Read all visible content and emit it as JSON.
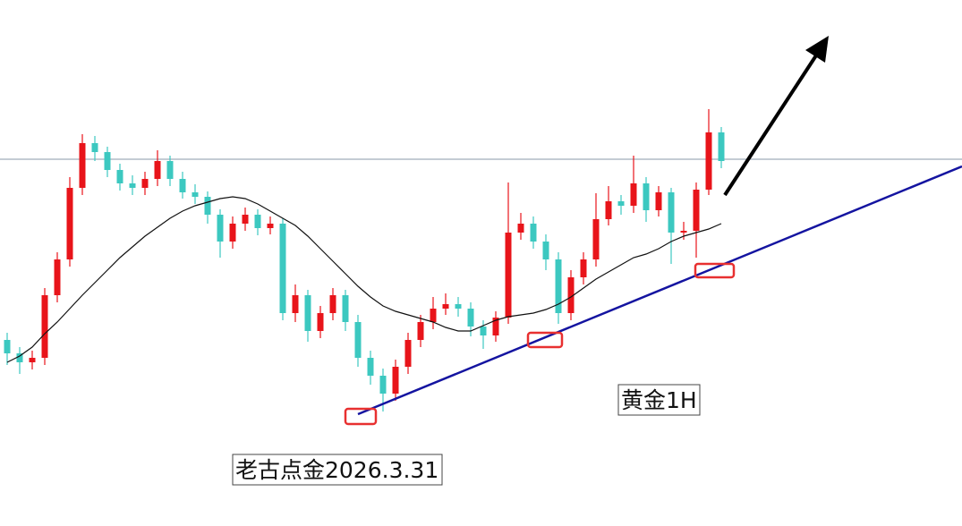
{
  "chart_data": {
    "type": "candlestick",
    "up_color": "#e8141a",
    "down_color": "#3cc8c0",
    "ma_color": "#111111",
    "ylim": [
      0,
      588
    ],
    "open": [
      208,
      193,
      183,
      188,
      258,
      298,
      378,
      428,
      418,
      398,
      383,
      378,
      388,
      408,
      388,
      373,
      368,
      348,
      318,
      338,
      348,
      333,
      338,
      238,
      258,
      218,
      238,
      258,
      228,
      188,
      168,
      148,
      178,
      208,
      228,
      243,
      248,
      243,
      223,
      213,
      233,
      328,
      338,
      318,
      298,
      238,
      278,
      298,
      343,
      363,
      358,
      383,
      353,
      373,
      328,
      330,
      376,
      440
    ],
    "high": [
      216,
      200,
      196,
      266,
      306,
      390,
      438,
      436,
      424,
      405,
      392,
      396,
      420,
      414,
      396,
      382,
      374,
      354,
      346,
      356,
      354,
      346,
      344,
      270,
      264,
      246,
      266,
      264,
      236,
      196,
      176,
      186,
      216,
      236,
      256,
      260,
      256,
      250,
      230,
      240,
      384,
      350,
      346,
      326,
      306,
      286,
      306,
      372,
      380,
      370,
      414,
      390,
      380,
      378,
      340,
      384,
      466,
      446
    ],
    "low": [
      180,
      170,
      175,
      180,
      250,
      290,
      370,
      408,
      390,
      375,
      370,
      370,
      380,
      380,
      366,
      360,
      338,
      300,
      310,
      330,
      325,
      326,
      230,
      228,
      206,
      210,
      230,
      218,
      178,
      158,
      128,
      140,
      170,
      200,
      220,
      236,
      234,
      212,
      198,
      206,
      226,
      320,
      310,
      286,
      226,
      230,
      270,
      290,
      336,
      348,
      350,
      340,
      346,
      293,
      320,
      300,
      370,
      400
    ],
    "close": [
      193,
      183,
      188,
      258,
      298,
      378,
      428,
      418,
      398,
      383,
      378,
      388,
      408,
      388,
      373,
      368,
      348,
      318,
      338,
      348,
      333,
      338,
      238,
      258,
      218,
      238,
      258,
      228,
      188,
      168,
      148,
      178,
      208,
      228,
      243,
      248,
      243,
      223,
      213,
      233,
      328,
      338,
      318,
      298,
      238,
      278,
      298,
      343,
      363,
      358,
      383,
      353,
      373,
      328,
      330,
      376,
      440,
      408
    ],
    "ma": [
      183,
      190,
      200,
      215,
      228,
      243,
      258,
      272,
      286,
      300,
      312,
      324,
      334,
      344,
      352,
      358,
      362,
      366,
      368,
      366,
      360,
      352,
      344,
      336,
      324,
      310,
      296,
      282,
      268,
      256,
      246,
      240,
      236,
      232,
      228,
      222,
      218,
      218,
      224,
      230,
      234,
      236,
      238,
      242,
      248,
      256,
      266,
      276,
      284,
      292,
      300,
      304,
      310,
      318,
      324,
      328,
      332,
      338
    ],
    "annotations": [
      "黄金1H",
      "老古点金2026.3.31"
    ]
  }
}
